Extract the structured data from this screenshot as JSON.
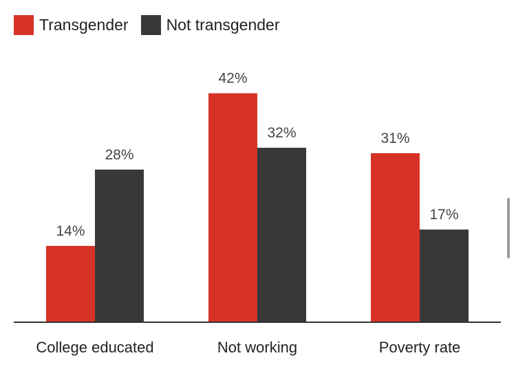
{
  "chart_data": {
    "type": "bar",
    "categories": [
      "College educated",
      "Not working",
      "Poverty rate"
    ],
    "series": [
      {
        "name": "Transgender",
        "values": [
          14,
          42,
          31
        ],
        "color": "#d63228"
      },
      {
        "name": "Not transgender",
        "values": [
          28,
          32,
          17
        ],
        "color": "#383838"
      }
    ],
    "value_labels": [
      [
        "14%",
        "42%",
        "31%"
      ],
      [
        "28%",
        "32%",
        "17%"
      ]
    ],
    "ylim": [
      0,
      46
    ],
    "legend_position": "top-left",
    "grid": false
  }
}
